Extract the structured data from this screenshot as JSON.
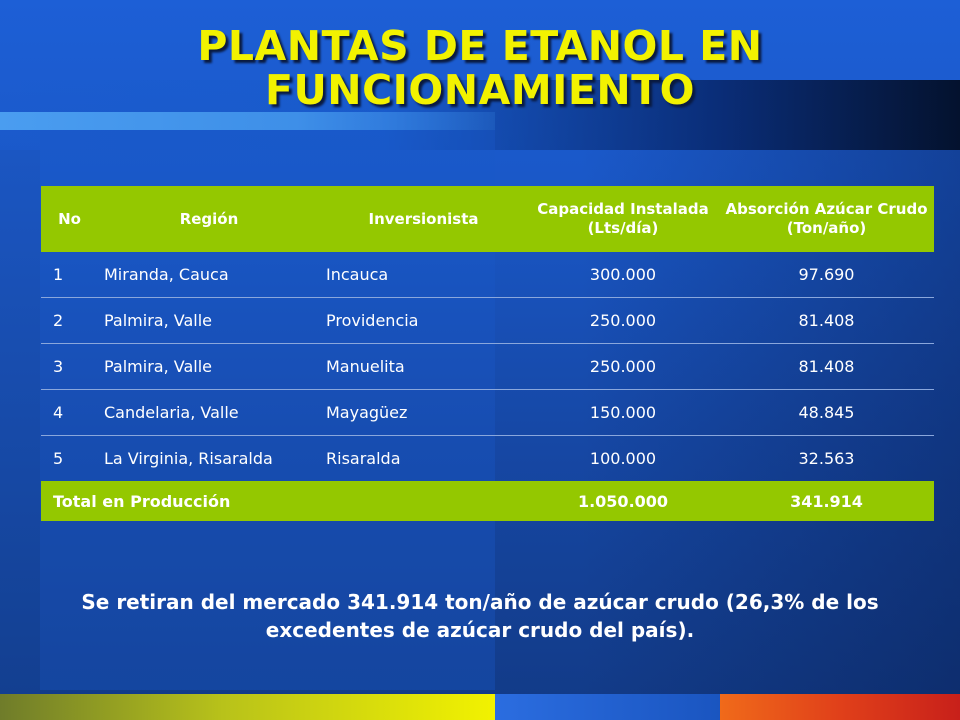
{
  "slide": {
    "title_line1": "PLANTAS DE ETANOL EN",
    "title_line2": "FUNCIONAMIENTO"
  },
  "table": {
    "headers": {
      "no": "No",
      "region": "Región",
      "investor": "Inversionista",
      "capacity": "Capacidad Instalada (Lts/día)",
      "absorption": "Absorción Azúcar Crudo (Ton/año)"
    },
    "rows": [
      {
        "no": "1",
        "region": "Miranda, Cauca",
        "investor": "Incauca",
        "capacity": "300.000",
        "absorption": "97.690"
      },
      {
        "no": "2",
        "region": "Palmira, Valle",
        "investor": "Providencia",
        "capacity": "250.000",
        "absorption": "81.408"
      },
      {
        "no": "3",
        "region": "Palmira, Valle",
        "investor": "Manuelita",
        "capacity": "250.000",
        "absorption": "81.408"
      },
      {
        "no": "4",
        "region": "Candelaria, Valle",
        "investor": "Mayagüez",
        "capacity": "150.000",
        "absorption": "48.845"
      },
      {
        "no": "5",
        "region": "La Virginia, Risaralda",
        "investor": "Risaralda",
        "capacity": "100.000",
        "absorption": "32.563"
      }
    ],
    "total": {
      "label": "Total en Producción",
      "capacity": "1.050.000",
      "absorption": "341.914"
    }
  },
  "footnote": {
    "line1": "Se retiran del mercado 341.914 ton/año de azúcar crudo (26,3% de los",
    "line2": "excedentes de azúcar crudo del país)."
  },
  "colors": {
    "title": "#f2f200",
    "header_bg": "#94c800",
    "background": "#1a58c8"
  }
}
